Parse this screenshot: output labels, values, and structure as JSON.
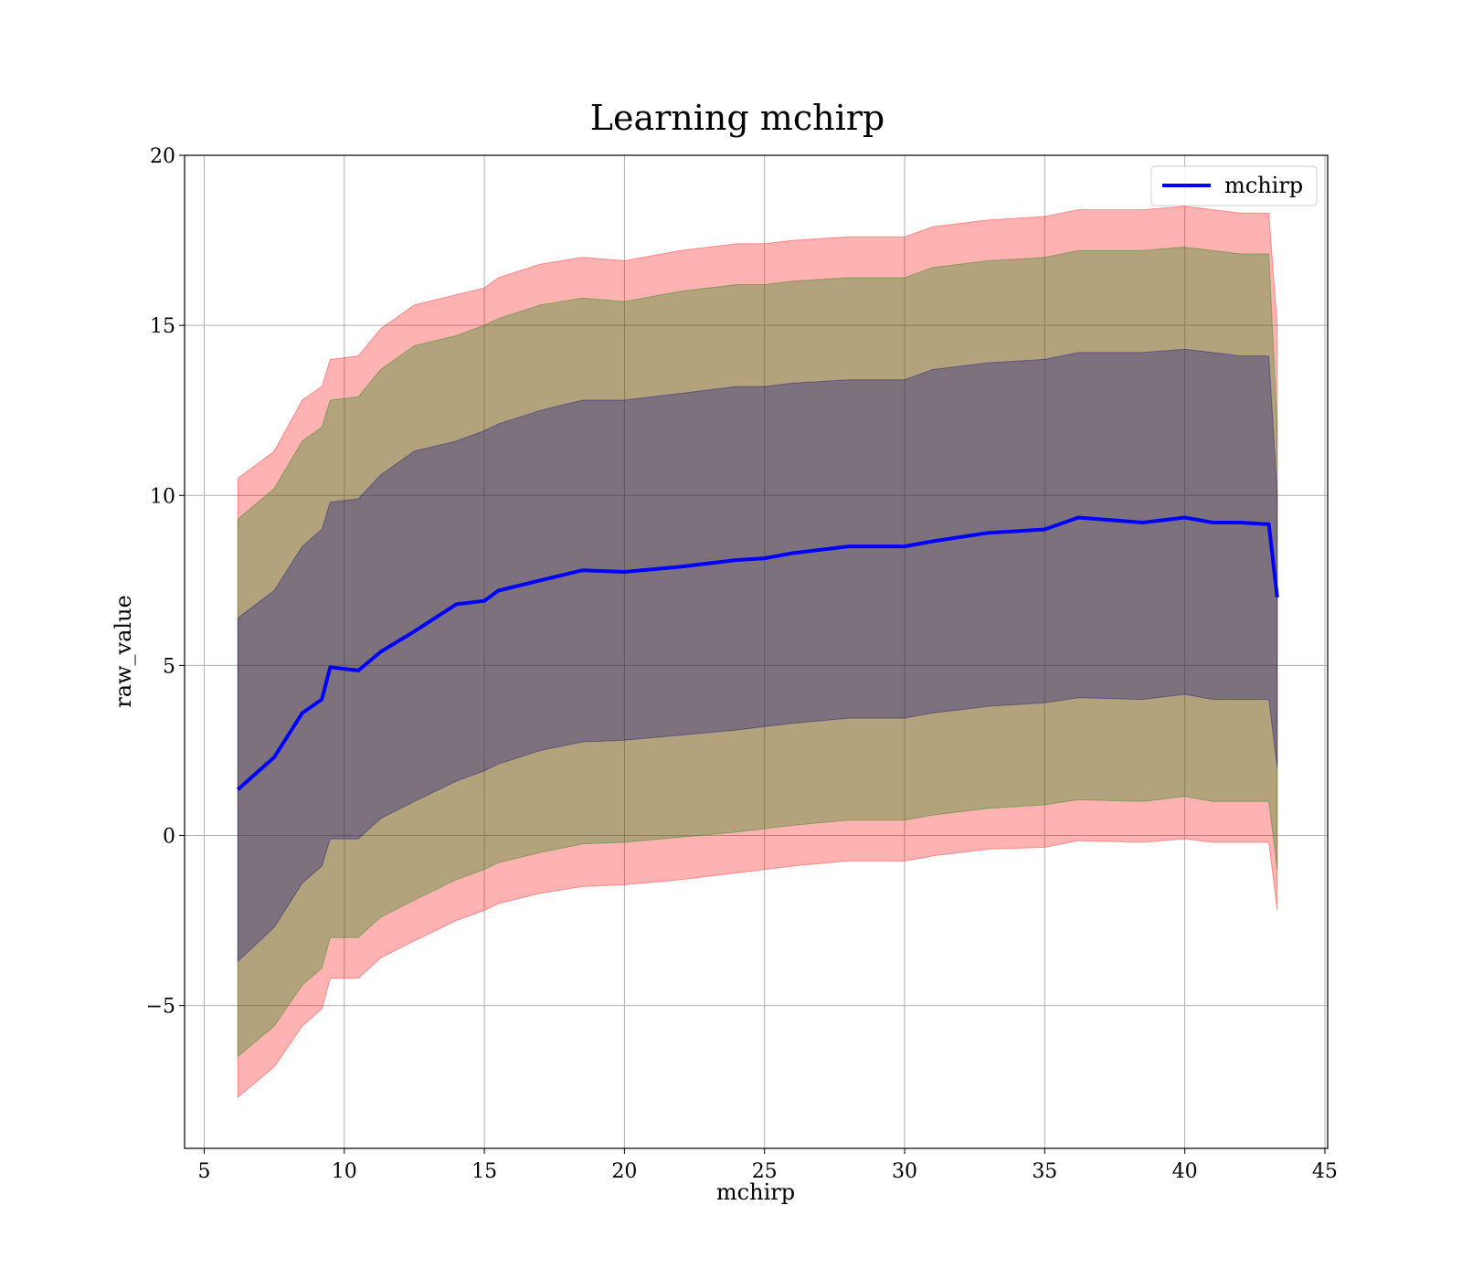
{
  "chart_data": {
    "type": "line",
    "title": "Learning mchirp",
    "xlabel": "mchirp",
    "ylabel": "raw_value",
    "xlim": [
      4.3,
      45.1
    ],
    "ylim": [
      -9.2,
      20.0
    ],
    "xticks": [
      5,
      10,
      15,
      20,
      25,
      30,
      35,
      40,
      45
    ],
    "yticks": [
      -5,
      0,
      5,
      10,
      15,
      20
    ],
    "xtick_labels": [
      "5",
      "10",
      "15",
      "20",
      "25",
      "30",
      "35",
      "40",
      "45"
    ],
    "ytick_labels": [
      "−5",
      "0",
      "5",
      "10",
      "15",
      "20"
    ],
    "grid": true,
    "legend_position": "top-right",
    "legend": [
      "mchirp"
    ],
    "x": [
      6.2,
      7.5,
      8.5,
      9.2,
      9.5,
      10.5,
      11.3,
      12.5,
      14,
      15,
      15.5,
      17,
      18.5,
      20,
      22,
      24,
      25,
      26,
      28,
      30,
      31,
      33,
      35,
      36.2,
      38.5,
      40,
      41,
      42,
      43,
      43.3
    ],
    "series": [
      {
        "name": "mchirp",
        "color": "#0000ff",
        "values": [
          1.35,
          2.3,
          3.6,
          4.0,
          4.95,
          4.85,
          5.4,
          6.0,
          6.8,
          6.9,
          7.2,
          7.5,
          7.8,
          7.75,
          7.9,
          8.1,
          8.15,
          8.3,
          8.5,
          8.5,
          8.65,
          8.9,
          9.0,
          9.35,
          9.2,
          9.35,
          9.2,
          9.2,
          9.15,
          7.0
        ]
      }
    ],
    "bands": [
      {
        "color": "#ff0000",
        "opacity": 0.3,
        "lower": [
          -7.7,
          -6.8,
          -5.6,
          -5.1,
          -4.2,
          -4.2,
          -3.6,
          -3.1,
          -2.5,
          -2.2,
          -2.0,
          -1.7,
          -1.5,
          -1.45,
          -1.3,
          -1.1,
          -1.0,
          -0.9,
          -0.75,
          -0.75,
          -0.6,
          -0.4,
          -0.35,
          -0.15,
          -0.2,
          -0.1,
          -0.2,
          -0.2,
          -0.2,
          -2.2
        ],
        "upper": [
          10.5,
          11.3,
          12.8,
          13.2,
          14.0,
          14.1,
          14.9,
          15.6,
          15.9,
          16.1,
          16.4,
          16.8,
          17.0,
          16.9,
          17.2,
          17.4,
          17.4,
          17.5,
          17.6,
          17.6,
          17.9,
          18.1,
          18.2,
          18.4,
          18.4,
          18.5,
          18.4,
          18.3,
          18.3,
          15.0
        ]
      },
      {
        "color": "#008000",
        "opacity": 0.3,
        "lower": [
          -6.5,
          -5.6,
          -4.4,
          -3.9,
          -3.0,
          -3.0,
          -2.4,
          -1.9,
          -1.3,
          -1.0,
          -0.8,
          -0.5,
          -0.25,
          -0.2,
          -0.05,
          0.1,
          0.2,
          0.3,
          0.45,
          0.45,
          0.6,
          0.8,
          0.9,
          1.05,
          1.0,
          1.15,
          1.0,
          1.0,
          1.0,
          -1.0
        ],
        "upper": [
          9.3,
          10.2,
          11.6,
          12.0,
          12.8,
          12.9,
          13.7,
          14.4,
          14.7,
          15.0,
          15.2,
          15.6,
          15.8,
          15.7,
          16.0,
          16.2,
          16.2,
          16.3,
          16.4,
          16.4,
          16.7,
          16.9,
          17.0,
          17.2,
          17.2,
          17.3,
          17.2,
          17.1,
          17.1,
          12.0
        ]
      },
      {
        "color": "#000080",
        "opacity": 0.3,
        "lower": [
          -3.7,
          -2.7,
          -1.4,
          -0.9,
          -0.1,
          -0.1,
          0.5,
          1.0,
          1.6,
          1.9,
          2.1,
          2.5,
          2.75,
          2.8,
          2.95,
          3.1,
          3.2,
          3.3,
          3.45,
          3.45,
          3.6,
          3.8,
          3.9,
          4.05,
          4.0,
          4.15,
          4.0,
          4.0,
          4.0,
          2.0
        ],
        "upper": [
          6.4,
          7.2,
          8.5,
          9.0,
          9.8,
          9.9,
          10.6,
          11.3,
          11.6,
          11.9,
          12.1,
          12.5,
          12.8,
          12.8,
          13.0,
          13.2,
          13.2,
          13.3,
          13.4,
          13.4,
          13.7,
          13.9,
          14.0,
          14.2,
          14.2,
          14.3,
          14.2,
          14.1,
          14.1,
          10.0
        ]
      }
    ]
  }
}
